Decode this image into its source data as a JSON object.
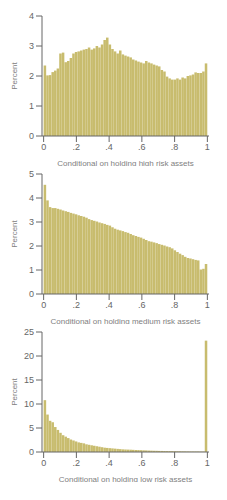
{
  "chart_data": [
    {
      "type": "histogram",
      "xlabel": "Conditional on holding high risk assets",
      "ylabel": "Percent",
      "color": "#c8bc6e",
      "grid": false,
      "xlim": [
        -0.01,
        1.01
      ],
      "ylim": [
        0,
        4
      ],
      "yticks": [
        0,
        1,
        2,
        3,
        4
      ],
      "xticks": [
        0,
        {
          "value": 0.2,
          "label": ".2"
        },
        {
          "value": 0.4,
          "label": ".4"
        },
        {
          "value": 0.6,
          "label": ".6"
        },
        {
          "value": 0.8,
          "label": ".8"
        },
        1
      ],
      "bins": [
        0,
        0.015873015873,
        0.031746031746,
        0.047619047619,
        0.063492063492,
        0.079365079365,
        0.095238095238,
        0.111111111111,
        0.126984126984,
        0.142857142857,
        0.15873015873,
        0.174603174603,
        0.190476190476,
        0.206349206349,
        0.222222222222,
        0.238095238095,
        0.253968253968,
        0.269841269841,
        0.285714285714,
        0.301587301587,
        0.31746031746,
        0.333333333333,
        0.349206349206,
        0.365079365079,
        0.380952380952,
        0.396825396825,
        0.412698412698,
        0.428571428571,
        0.444444444444,
        0.460317460317,
        0.47619047619,
        0.492063492063,
        0.507936507936,
        0.523809523809,
        0.539682539682,
        0.555555555555,
        0.571428571428,
        0.587301587301,
        0.603174603174,
        0.619047619047,
        0.63492063492,
        0.650793650793,
        0.666666666666,
        0.682539682539,
        0.698412698412,
        0.714285714285,
        0.730158730158,
        0.746031746031,
        0.761904761904,
        0.777777777777,
        0.79365079365,
        0.809523809523,
        0.825396825396,
        0.841269841269,
        0.857142857142,
        0.873015873015,
        0.888888888888,
        0.904761904761,
        0.920634920634,
        0.936507936507,
        0.95238095238,
        0.968253968253,
        0.984126984126,
        1
      ],
      "values": [
        2.35,
        2.02,
        2.03,
        2.13,
        2.18,
        2.25,
        2.75,
        2.78,
        2.46,
        2.5,
        2.6,
        2.75,
        2.8,
        2.82,
        2.85,
        2.88,
        2.9,
        2.95,
        2.88,
        2.92,
        3.0,
        2.95,
        3.05,
        3.2,
        3.28,
        3.05,
        2.9,
        2.82,
        2.75,
        2.85,
        2.72,
        2.68,
        2.65,
        2.62,
        2.55,
        2.52,
        2.48,
        2.45,
        2.42,
        2.5,
        2.45,
        2.42,
        2.38,
        2.35,
        2.32,
        2.2,
        2.15,
        1.98,
        1.92,
        1.88,
        1.88,
        1.92,
        1.88,
        1.95,
        1.92,
        2.0,
        2.02,
        2.05,
        2.12,
        2.1,
        2.1,
        2.15,
        2.42
      ]
    },
    {
      "type": "histogram",
      "xlabel": "Conditional on holding medium risk assets",
      "ylabel": "Percent",
      "color": "#c8bc6e",
      "grid": false,
      "xlim": [
        -0.01,
        1.01
      ],
      "ylim": [
        0,
        5
      ],
      "yticks": [
        0,
        1,
        2,
        3,
        4,
        5
      ],
      "xticks": [
        0,
        {
          "value": 0.2,
          "label": ".2"
        },
        {
          "value": 0.4,
          "label": ".4"
        },
        {
          "value": 0.6,
          "label": ".6"
        },
        {
          "value": 0.8,
          "label": ".8"
        },
        1
      ],
      "bins": [
        0,
        0.015873015873,
        0.031746031746,
        0.047619047619,
        0.063492063492,
        0.079365079365,
        0.095238095238,
        0.111111111111,
        0.126984126984,
        0.142857142857,
        0.15873015873,
        0.174603174603,
        0.190476190476,
        0.206349206349,
        0.222222222222,
        0.238095238095,
        0.253968253968,
        0.269841269841,
        0.285714285714,
        0.301587301587,
        0.31746031746,
        0.333333333333,
        0.349206349206,
        0.365079365079,
        0.380952380952,
        0.396825396825,
        0.412698412698,
        0.428571428571,
        0.444444444444,
        0.460317460317,
        0.47619047619,
        0.492063492063,
        0.507936507936,
        0.523809523809,
        0.539682539682,
        0.555555555555,
        0.571428571428,
        0.587301587301,
        0.603174603174,
        0.619047619047,
        0.63492063492,
        0.650793650793,
        0.666666666666,
        0.682539682539,
        0.698412698412,
        0.714285714285,
        0.730158730158,
        0.746031746031,
        0.761904761904,
        0.777777777777,
        0.79365079365,
        0.809523809523,
        0.825396825396,
        0.841269841269,
        0.857142857142,
        0.873015873015,
        0.888888888888,
        0.904761904761,
        0.920634920634,
        0.936507936507,
        0.95238095238,
        0.968253968253,
        0.984126984126,
        1
      ],
      "values": [
        4.55,
        3.9,
        3.62,
        3.58,
        3.58,
        3.55,
        3.52,
        3.48,
        3.45,
        3.42,
        3.38,
        3.35,
        3.32,
        3.28,
        3.25,
        3.22,
        3.18,
        3.12,
        3.08,
        3.05,
        3.02,
        2.98,
        2.95,
        2.92,
        2.88,
        2.85,
        2.78,
        2.72,
        2.68,
        2.65,
        2.62,
        2.58,
        2.55,
        2.5,
        2.45,
        2.42,
        2.38,
        2.35,
        2.3,
        2.25,
        2.2,
        2.18,
        2.15,
        2.12,
        2.08,
        2.05,
        2.02,
        1.98,
        1.95,
        1.9,
        1.82,
        1.75,
        1.68,
        1.62,
        1.55,
        1.5,
        1.48,
        1.45,
        1.42,
        1.4,
        1.02,
        1.05,
        1.25
      ]
    },
    {
      "type": "histogram",
      "xlabel": "Conditional on holding low risk assets",
      "ylabel": "Percent",
      "color": "#c8bc6e",
      "grid": false,
      "xlim": [
        -0.01,
        1.01
      ],
      "ylim": [
        0,
        25
      ],
      "yticks": [
        0,
        5,
        10,
        15,
        20,
        25
      ],
      "xticks": [
        0,
        {
          "value": 0.2,
          "label": ".2"
        },
        {
          "value": 0.4,
          "label": ".4"
        },
        {
          "value": 0.6,
          "label": ".6"
        },
        {
          "value": 0.8,
          "label": ".8"
        },
        1
      ],
      "bins": [
        0,
        0.015873015873,
        0.031746031746,
        0.047619047619,
        0.063492063492,
        0.079365079365,
        0.095238095238,
        0.111111111111,
        0.126984126984,
        0.142857142857,
        0.15873015873,
        0.174603174603,
        0.190476190476,
        0.206349206349,
        0.222222222222,
        0.238095238095,
        0.253968253968,
        0.269841269841,
        0.285714285714,
        0.301587301587,
        0.31746031746,
        0.333333333333,
        0.349206349206,
        0.365079365079,
        0.380952380952,
        0.396825396825,
        0.412698412698,
        0.428571428571,
        0.444444444444,
        0.460317460317,
        0.47619047619,
        0.492063492063,
        0.507936507936,
        0.523809523809,
        0.539682539682,
        0.555555555555,
        0.571428571428,
        0.587301587301,
        0.603174603174,
        0.619047619047,
        0.63492063492,
        0.650793650793,
        0.666666666666,
        0.682539682539,
        0.698412698412,
        0.714285714285,
        0.730158730158,
        0.746031746031,
        0.761904761904,
        0.777777777777,
        0.79365079365,
        0.809523809523,
        0.825396825396,
        0.841269841269,
        0.857142857142,
        0.873015873015,
        0.888888888888,
        0.904761904761,
        0.920634920634,
        0.936507936507,
        0.95238095238,
        0.968253968253,
        0.984126984126,
        1
      ],
      "values": [
        10.8,
        7.8,
        6.5,
        6.2,
        5.2,
        4.6,
        4.0,
        3.5,
        3.2,
        2.9,
        2.6,
        2.4,
        2.2,
        2.0,
        1.9,
        1.8,
        1.6,
        1.5,
        1.4,
        1.3,
        1.2,
        1.1,
        1.0,
        0.9,
        0.85,
        0.8,
        0.75,
        0.7,
        0.65,
        0.6,
        0.55,
        0.52,
        0.5,
        0.48,
        0.45,
        0.42,
        0.4,
        0.38,
        0.35,
        0.33,
        0.3,
        0.28,
        0.26,
        0.25,
        0.23,
        0.22,
        0.2,
        0.19,
        0.18,
        0.17,
        0.16,
        0.15,
        0.14,
        0.13,
        0.12,
        0.11,
        0.1,
        0.1,
        0.1,
        0.1,
        0.08,
        0.08,
        23.2
      ]
    }
  ]
}
